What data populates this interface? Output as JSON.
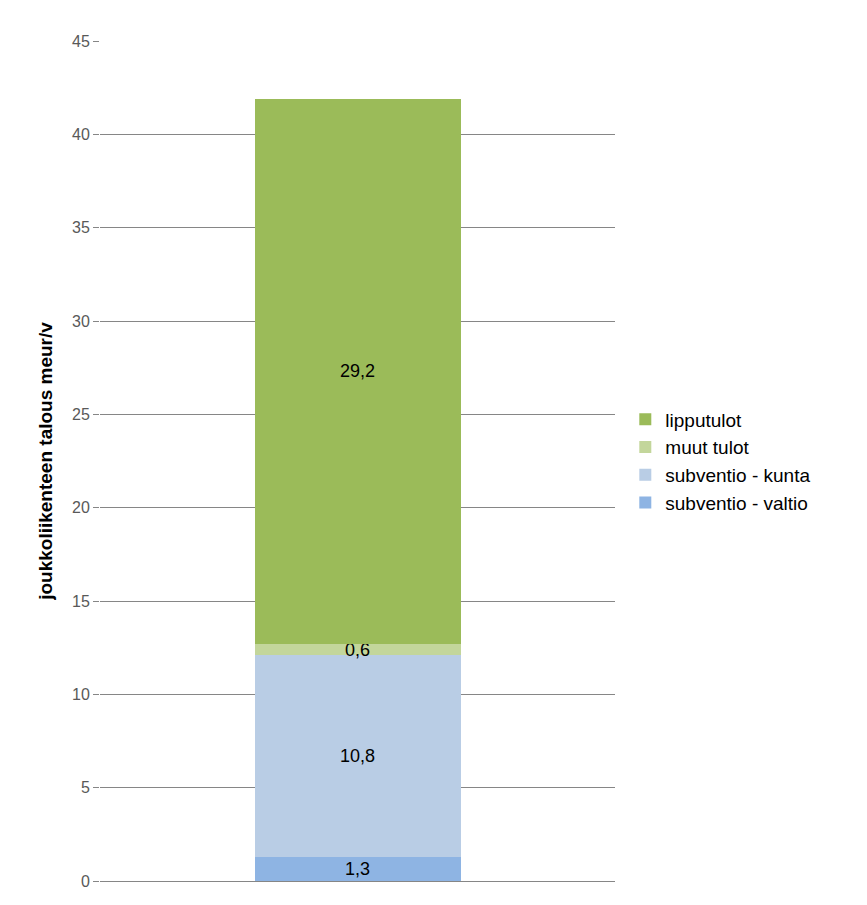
{
  "chart_data": {
    "type": "bar",
    "stacked": true,
    "categories": [
      null
    ],
    "series": [
      {
        "name": "subventio - valtio",
        "color": "#8eb4e3",
        "values": [
          1.3
        ],
        "value_labels": [
          "1,3"
        ]
      },
      {
        "name": "subventio - kunta",
        "color": "#b9cde5",
        "values": [
          10.8
        ],
        "value_labels": [
          "10,8"
        ]
      },
      {
        "name": "muut tulot",
        "color": "#c3d69b",
        "values": [
          0.6
        ],
        "value_labels": [
          "0,6"
        ]
      },
      {
        "name": "lipputulot",
        "color": "#9bbb59",
        "values": [
          29.2
        ],
        "value_labels": [
          "29,2"
        ]
      }
    ],
    "y_label": "joukkoliikenteen talous meur/v",
    "ylim": [
      0,
      45
    ],
    "yticks": [
      0,
      5,
      10,
      15,
      20,
      25,
      30,
      35,
      40,
      45
    ],
    "grid": true,
    "legend": "right",
    "data_labels": true,
    "tick_labels": "y"
  }
}
